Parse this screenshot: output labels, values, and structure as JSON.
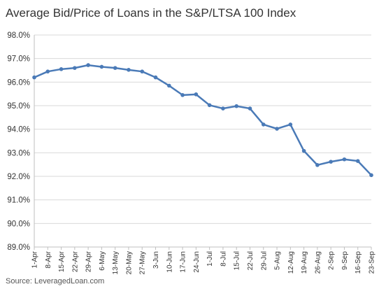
{
  "chart_data": {
    "type": "line",
    "title": "Average Bid/Price of Loans in the S&P/LTSA 100 Index",
    "source": "Source: LeveragedLoan.com",
    "xlabel": "",
    "ylabel": "",
    "ylim": [
      89.0,
      98.0
    ],
    "yticks": [
      "89.0%",
      "90.0%",
      "91.0%",
      "92.0%",
      "93.0%",
      "94.0%",
      "95.0%",
      "96.0%",
      "97.0%",
      "98.0%"
    ],
    "grid": true,
    "legend": "none",
    "line_color": "#4a7ab7",
    "categories": [
      "1-Apr",
      "8-Apr",
      "15-Apr",
      "22-Apr",
      "29-Apr",
      "6-May",
      "13-May",
      "20-May",
      "27-May",
      "3-Jun",
      "10-Jun",
      "17-Jun",
      "24-Jun",
      "1-Jul",
      "8-Jul",
      "15-Jul",
      "22-Jul",
      "29-Jul",
      "5-Aug",
      "12-Aug",
      "19-Aug",
      "26-Aug",
      "2-Sep",
      "9-Sep",
      "16-Sep",
      "23-Sep"
    ],
    "values": [
      96.2,
      96.45,
      96.55,
      96.6,
      96.72,
      96.65,
      96.6,
      96.52,
      96.45,
      96.2,
      95.85,
      95.45,
      95.48,
      95.02,
      94.88,
      94.98,
      94.88,
      94.2,
      94.02,
      94.2,
      93.08,
      92.48,
      92.62,
      92.72,
      92.65,
      92.05
    ]
  }
}
